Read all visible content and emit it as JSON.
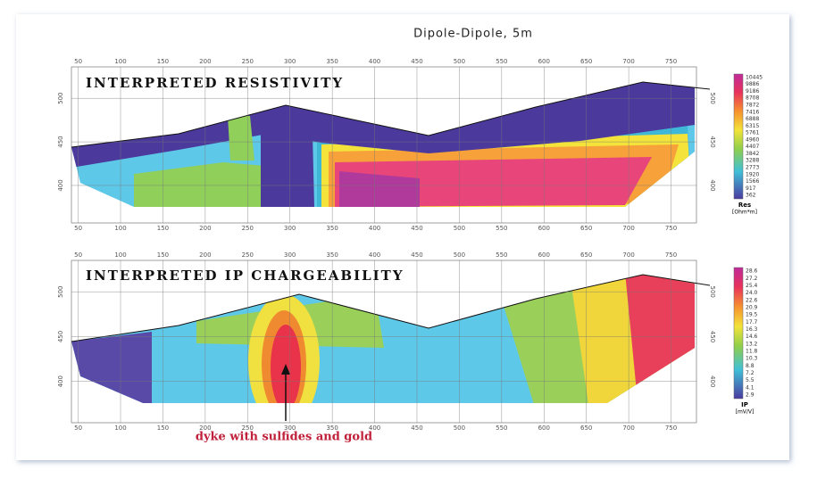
{
  "title": "Dipole-Dipole, 5m",
  "chart_data": [
    {
      "type": "section",
      "title": "INTERPRETED RESISTIVITY",
      "xlim": [
        42,
        780
      ],
      "xticks": [
        50,
        100,
        150,
        200,
        250,
        300,
        350,
        400,
        450,
        500,
        550,
        600,
        650,
        700,
        750
      ],
      "ylim": [
        357,
        536
      ],
      "yticks": [
        400,
        450,
        500
      ],
      "colorbar": {
        "title": "Res",
        "unit": "[Ohm*m]",
        "labels": [
          "10445",
          "9886",
          "9186",
          "8708",
          "7872",
          "7416",
          "6888",
          "6315",
          "5761",
          "4960",
          "4407",
          "3842",
          "3288",
          "2773",
          "1920",
          "1566",
          "917",
          "362"
        ]
      }
    },
    {
      "type": "section",
      "title": "INTERPRETED IP CHARGEABILITY",
      "xlim": [
        42,
        780
      ],
      "xticks": [
        50,
        100,
        150,
        200,
        250,
        300,
        350,
        400,
        450,
        500,
        550,
        600,
        650,
        700,
        750
      ],
      "ylim": [
        354,
        535
      ],
      "yticks": [
        400,
        450,
        500
      ],
      "colorbar": {
        "title": "IP",
        "unit": "[mV/V]",
        "labels": [
          "28.6",
          "27.2",
          "25.4",
          "24.0",
          "22.6",
          "20.9",
          "19.5",
          "17.7",
          "16.3",
          "14.6",
          "13.2",
          "11.8",
          "10.3",
          "8.8",
          "7.2",
          "5.5",
          "4.1",
          "2.9"
        ]
      },
      "annotation": "dyke with sulfides and gold"
    }
  ]
}
